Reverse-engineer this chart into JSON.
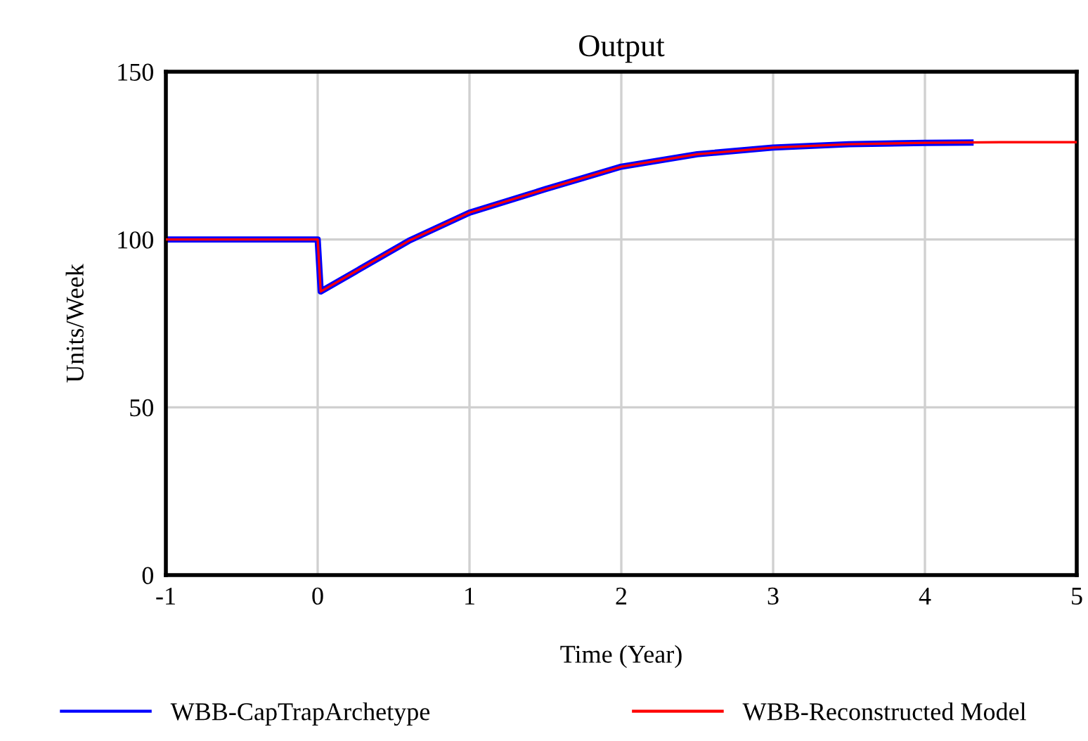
{
  "chart_data": {
    "type": "line",
    "title": "Output",
    "xlabel": "Time (Year)",
    "ylabel": "Units/Week",
    "xlim": [
      -1,
      5
    ],
    "xticks": [
      -1,
      0,
      1,
      2,
      3,
      4,
      5
    ],
    "ylim": [
      0,
      150
    ],
    "yticks": [
      0,
      50,
      100,
      150
    ],
    "grid": true,
    "legend": "bottom",
    "series": [
      {
        "name": "WBB-CapTrapArchetype",
        "color": "#0000ff",
        "x": [
          -1,
          0,
          0.02,
          0.6,
          1,
          1.5,
          2,
          2.5,
          3,
          3.5,
          4,
          4.3
        ],
        "values": [
          100,
          100,
          84.5,
          99.6,
          108,
          115,
          121.7,
          125.4,
          127.4,
          128.4,
          128.8,
          128.9
        ]
      },
      {
        "name": "WBB-Reconstructed Model",
        "color": "#ff0000",
        "x": [
          -1,
          0,
          0.02,
          0.6,
          1,
          1.5,
          2,
          2.5,
          3,
          3.5,
          4,
          4.5,
          5
        ],
        "values": [
          100,
          100,
          84.5,
          99.6,
          108,
          115,
          121.7,
          125.4,
          127.4,
          128.4,
          128.8,
          129,
          129
        ]
      }
    ]
  }
}
